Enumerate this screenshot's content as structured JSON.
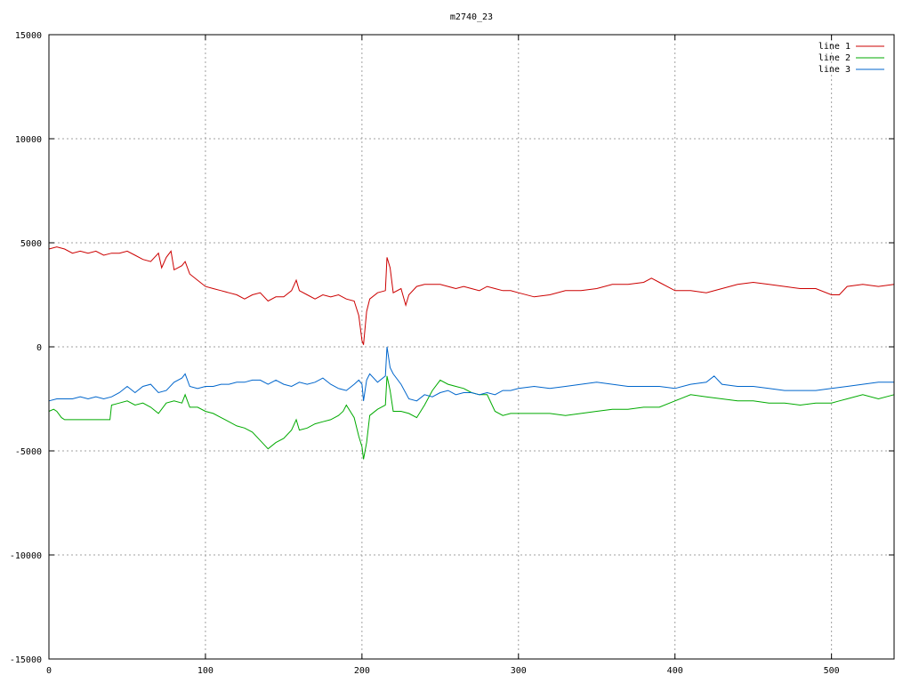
{
  "chart_data": {
    "type": "line",
    "title": "m2740_23",
    "xlabel": "",
    "ylabel": "",
    "xlim": [
      0,
      540
    ],
    "ylim": [
      -15000,
      15000
    ],
    "xticks": [
      0,
      100,
      200,
      300,
      400,
      500
    ],
    "yticks": [
      -15000,
      -10000,
      -5000,
      0,
      5000,
      10000,
      15000
    ],
    "grid": true,
    "legend_position": "top-right",
    "series": [
      {
        "name": "line 1",
        "color": "#cc0000",
        "x": [
          0,
          5,
          10,
          15,
          20,
          25,
          30,
          35,
          40,
          45,
          50,
          55,
          60,
          65,
          70,
          72,
          75,
          78,
          80,
          85,
          87,
          90,
          95,
          100,
          105,
          110,
          115,
          120,
          125,
          130,
          135,
          140,
          145,
          150,
          155,
          158,
          160,
          165,
          170,
          175,
          180,
          185,
          190,
          195,
          198,
          200,
          201,
          203,
          205,
          210,
          215,
          216,
          218,
          220,
          225,
          228,
          230,
          235,
          240,
          245,
          250,
          255,
          260,
          265,
          270,
          275,
          280,
          285,
          290,
          295,
          300,
          310,
          320,
          330,
          340,
          350,
          360,
          370,
          380,
          385,
          390,
          400,
          410,
          420,
          430,
          440,
          450,
          460,
          470,
          480,
          490,
          500,
          505,
          510,
          520,
          530,
          540
        ],
        "y": [
          4700,
          4800,
          4700,
          4500,
          4600,
          4500,
          4600,
          4400,
          4500,
          4500,
          4600,
          4400,
          4200,
          4100,
          4500,
          3800,
          4300,
          4600,
          3700,
          3900,
          4100,
          3500,
          3200,
          2900,
          2800,
          2700,
          2600,
          2500,
          2300,
          2500,
          2600,
          2200,
          2400,
          2400,
          2700,
          3200,
          2700,
          2500,
          2300,
          2500,
          2400,
          2500,
          2300,
          2200,
          1500,
          300,
          100,
          1700,
          2300,
          2600,
          2700,
          4300,
          3800,
          2600,
          2800,
          2000,
          2500,
          2900,
          3000,
          3000,
          3000,
          2900,
          2800,
          2900,
          2800,
          2700,
          2900,
          2800,
          2700,
          2700,
          2600,
          2400,
          2500,
          2700,
          2700,
          2800,
          3000,
          3000,
          3100,
          3300,
          3100,
          2700,
          2700,
          2600,
          2800,
          3000,
          3100,
          3000,
          2900,
          2800,
          2800,
          2500,
          2500,
          2900,
          3000,
          2900,
          3000
        ]
      },
      {
        "name": "line 2",
        "color": "#00aa00",
        "x": [
          0,
          3,
          5,
          8,
          10,
          15,
          20,
          25,
          30,
          35,
          39,
          40,
          45,
          50,
          55,
          60,
          65,
          70,
          75,
          80,
          85,
          87,
          90,
          95,
          100,
          105,
          110,
          115,
          120,
          125,
          130,
          135,
          140,
          145,
          150,
          155,
          158,
          160,
          165,
          170,
          175,
          180,
          185,
          188,
          190,
          195,
          198,
          200,
          201,
          203,
          205,
          210,
          215,
          216,
          218,
          220,
          225,
          230,
          235,
          240,
          245,
          250,
          255,
          260,
          265,
          270,
          275,
          280,
          285,
          290,
          295,
          300,
          310,
          320,
          330,
          340,
          350,
          360,
          370,
          380,
          390,
          400,
          410,
          420,
          430,
          440,
          450,
          460,
          470,
          480,
          490,
          500,
          505,
          510,
          520,
          530,
          540
        ],
        "y": [
          -3100,
          -3000,
          -3100,
          -3400,
          -3500,
          -3500,
          -3500,
          -3500,
          -3500,
          -3500,
          -3500,
          -2800,
          -2700,
          -2600,
          -2800,
          -2700,
          -2900,
          -3200,
          -2700,
          -2600,
          -2700,
          -2300,
          -2900,
          -2900,
          -3100,
          -3200,
          -3400,
          -3600,
          -3800,
          -3900,
          -4100,
          -4500,
          -4900,
          -4600,
          -4400,
          -4000,
          -3500,
          -4000,
          -3900,
          -3700,
          -3600,
          -3500,
          -3300,
          -3100,
          -2800,
          -3400,
          -4300,
          -4800,
          -5400,
          -4600,
          -3300,
          -3000,
          -2800,
          -1400,
          -2100,
          -3100,
          -3100,
          -3200,
          -3400,
          -2800,
          -2100,
          -1600,
          -1800,
          -1900,
          -2000,
          -2200,
          -2300,
          -2300,
          -3100,
          -3300,
          -3200,
          -3200,
          -3200,
          -3200,
          -3300,
          -3200,
          -3100,
          -3000,
          -3000,
          -2900,
          -2900,
          -2600,
          -2300,
          -2400,
          -2500,
          -2600,
          -2600,
          -2700,
          -2700,
          -2800,
          -2700,
          -2700,
          -2600,
          -2500,
          -2300,
          -2500,
          -2300
        ]
      },
      {
        "name": "line 3",
        "color": "#0066cc",
        "x": [
          0,
          5,
          10,
          15,
          20,
          25,
          30,
          35,
          40,
          45,
          50,
          55,
          60,
          65,
          70,
          75,
          80,
          85,
          87,
          90,
          95,
          100,
          105,
          110,
          115,
          120,
          125,
          130,
          135,
          140,
          145,
          150,
          155,
          160,
          165,
          170,
          175,
          180,
          185,
          190,
          195,
          198,
          200,
          201,
          203,
          205,
          210,
          215,
          216,
          218,
          220,
          225,
          230,
          235,
          240,
          245,
          250,
          255,
          260,
          265,
          270,
          275,
          280,
          285,
          290,
          295,
          300,
          310,
          320,
          330,
          340,
          350,
          360,
          370,
          380,
          390,
          400,
          410,
          420,
          425,
          430,
          440,
          450,
          460,
          470,
          480,
          490,
          500,
          510,
          520,
          530,
          540
        ],
        "y": [
          -2600,
          -2500,
          -2500,
          -2500,
          -2400,
          -2500,
          -2400,
          -2500,
          -2400,
          -2200,
          -1900,
          -2200,
          -1900,
          -1800,
          -2200,
          -2100,
          -1700,
          -1500,
          -1300,
          -1900,
          -2000,
          -1900,
          -1900,
          -1800,
          -1800,
          -1700,
          -1700,
          -1600,
          -1600,
          -1800,
          -1600,
          -1800,
          -1900,
          -1700,
          -1800,
          -1700,
          -1500,
          -1800,
          -2000,
          -2100,
          -1800,
          -1600,
          -1800,
          -2600,
          -1600,
          -1300,
          -1700,
          -1400,
          0,
          -1000,
          -1300,
          -1800,
          -2500,
          -2600,
          -2300,
          -2400,
          -2200,
          -2100,
          -2300,
          -2200,
          -2200,
          -2300,
          -2200,
          -2300,
          -2100,
          -2100,
          -2000,
          -1900,
          -2000,
          -1900,
          -1800,
          -1700,
          -1800,
          -1900,
          -1900,
          -1900,
          -2000,
          -1800,
          -1700,
          -1400,
          -1800,
          -1900,
          -1900,
          -2000,
          -2100,
          -2100,
          -2100,
          -2000,
          -1900,
          -1800,
          -1700,
          -1700
        ]
      }
    ]
  }
}
